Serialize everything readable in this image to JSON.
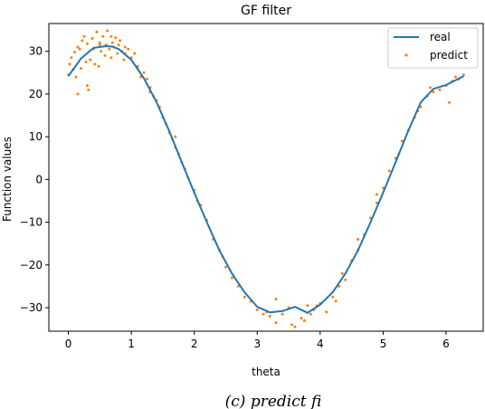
{
  "chart_data": {
    "type": "scatter",
    "title": "GF filter",
    "xlabel": "theta",
    "ylabel": "Function values",
    "xlim": [
      -0.31,
      6.59
    ],
    "ylim": [
      -35.5,
      36.5
    ],
    "xticks": [
      0,
      1,
      2,
      3,
      4,
      5,
      6
    ],
    "yticks": [
      -30,
      -20,
      -10,
      0,
      10,
      20,
      30
    ],
    "grid": false,
    "legend_position": "top-right",
    "series": [
      {
        "name": "real",
        "kind": "line",
        "color": "#1f77b4",
        "x": [
          0.0,
          0.2,
          0.4,
          0.6,
          0.7,
          0.8,
          1.0,
          1.2,
          1.4,
          1.6,
          1.8,
          2.0,
          2.2,
          2.4,
          2.6,
          2.8,
          3.0,
          3.2,
          3.4,
          3.6,
          3.8,
          4.0,
          4.2,
          4.4,
          4.6,
          4.8,
          5.0,
          5.2,
          5.4,
          5.6,
          5.8,
          6.0,
          6.28
        ],
        "y": [
          24.2,
          28.3,
          30.8,
          31.2,
          31.1,
          30.5,
          28.0,
          23.7,
          18.1,
          11.4,
          4.1,
          -3.1,
          -10.0,
          -16.6,
          -22.0,
          -26.4,
          -29.8,
          -31.1,
          -30.8,
          -29.8,
          -31.2,
          -29.3,
          -26.4,
          -22.0,
          -16.6,
          -10.0,
          -3.1,
          4.1,
          11.4,
          18.1,
          21.2,
          22.1,
          24.2
        ]
      },
      {
        "name": "predict",
        "kind": "scatter",
        "color": "#ff7f0e",
        "x": [
          0.0,
          0.02,
          0.05,
          0.08,
          0.1,
          0.12,
          0.15,
          0.18,
          0.2,
          0.22,
          0.25,
          0.28,
          0.3,
          0.32,
          0.35,
          0.38,
          0.4,
          0.42,
          0.45,
          0.48,
          0.5,
          0.52,
          0.55,
          0.58,
          0.6,
          0.62,
          0.65,
          0.68,
          0.7,
          0.72,
          0.75,
          0.78,
          0.8,
          0.82,
          0.85,
          0.88,
          0.9,
          0.95,
          1.0,
          1.05,
          1.1,
          1.15,
          1.2,
          1.25,
          1.3,
          1.35,
          1.4,
          1.45,
          1.5,
          1.55,
          1.6,
          1.65,
          1.7,
          1.75,
          1.8,
          1.85,
          1.9,
          2.0,
          2.1,
          2.2,
          2.3,
          2.4,
          2.5,
          2.6,
          2.7,
          2.8,
          2.9,
          3.0,
          3.1,
          3.2,
          3.3,
          3.4,
          3.5,
          3.6,
          3.7,
          3.8,
          3.9,
          4.0,
          4.1,
          4.2,
          4.3,
          4.4,
          4.5,
          4.6,
          4.7,
          4.8,
          4.9,
          5.0,
          5.1,
          5.2,
          5.3,
          5.4,
          5.5,
          5.6,
          5.7,
          5.8,
          5.9,
          6.0,
          6.1,
          6.2,
          6.28,
          0.3,
          0.5,
          0.9,
          1.3,
          1.7,
          2.45,
          3.3,
          3.55,
          3.75,
          3.95,
          4.25,
          4.6,
          5.25,
          5.75,
          6.05,
          0.15,
          0.68,
          1.1,
          2.05,
          3.15,
          3.85,
          4.35,
          4.9,
          5.55,
          6.15
        ],
        "y": [
          24.5,
          27.0,
          28.5,
          25.8,
          29.8,
          24.0,
          31.0,
          30.5,
          26.0,
          32.5,
          33.5,
          27.5,
          31.8,
          21.0,
          28.0,
          33.0,
          30.5,
          27.0,
          34.5,
          26.5,
          32.0,
          30.0,
          33.5,
          29.0,
          31.5,
          34.8,
          30.5,
          28.5,
          32.0,
          31.0,
          33.2,
          29.5,
          31.5,
          32.5,
          30.0,
          28.0,
          31.0,
          30.5,
          28.5,
          29.5,
          26.5,
          24.0,
          25.0,
          23.5,
          21.5,
          19.5,
          18.5,
          17.0,
          14.5,
          13.0,
          11.0,
          9.5,
          7.5,
          6.0,
          4.0,
          2.5,
          0.5,
          -2.5,
          -6.0,
          -9.5,
          -14.0,
          -16.5,
          -20.5,
          -23.0,
          -25.0,
          -27.5,
          -28.5,
          -30.5,
          -31.5,
          -32.0,
          -33.5,
          -31.5,
          -30.0,
          -34.5,
          -32.5,
          -29.5,
          -30.5,
          -29.0,
          -31.0,
          -27.5,
          -25.0,
          -23.5,
          -19.0,
          -16.5,
          -13.0,
          -9.0,
          -5.5,
          -2.0,
          2.0,
          5.0,
          9.0,
          11.5,
          14.5,
          17.0,
          19.5,
          20.5,
          21.0,
          22.0,
          23.0,
          23.5,
          24.5,
          22.0,
          31.5,
          29.5,
          20.5,
          10.0,
          -18.0,
          -28.0,
          -34.0,
          -33.0,
          -29.5,
          -28.5,
          -14.0,
          6.0,
          21.5,
          18.0,
          20.0,
          33.5,
          26.0,
          -5.0,
          -31.0,
          -31.5,
          -22.0,
          -3.5,
          16.0,
          24.0
        ]
      }
    ]
  },
  "caption": "(c) predict fi"
}
